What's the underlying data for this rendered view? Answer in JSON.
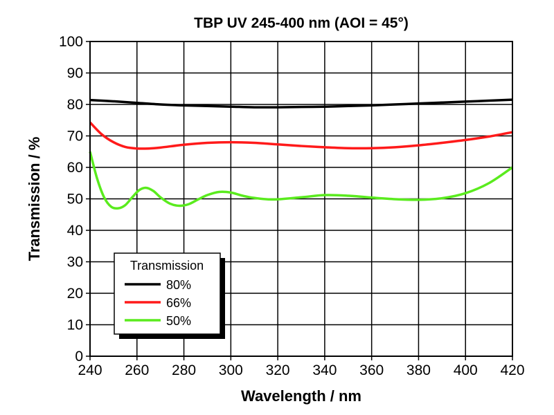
{
  "chart_data": {
    "type": "line",
    "title": "TBP UV 245-400 nm (AOI = 45°)",
    "xlabel": "Wavelength / nm",
    "ylabel": "Transmission / %",
    "xlim": [
      240,
      420
    ],
    "ylim": [
      0,
      100
    ],
    "xticks": [
      240,
      260,
      280,
      300,
      320,
      340,
      360,
      380,
      400,
      420
    ],
    "yticks": [
      0,
      10,
      20,
      30,
      40,
      50,
      60,
      70,
      80,
      90,
      100
    ],
    "grid": true,
    "legend": {
      "title": "Transmission",
      "position": "bottom-left"
    },
    "series": [
      {
        "name": "80%",
        "color": "#000000",
        "x": [
          240,
          250,
          260,
          270,
          280,
          290,
          300,
          310,
          320,
          330,
          340,
          350,
          360,
          370,
          380,
          390,
          400,
          410,
          420
        ],
        "y": [
          81.4,
          81.0,
          80.5,
          80.0,
          79.7,
          79.5,
          79.3,
          79.1,
          79.1,
          79.2,
          79.3,
          79.5,
          79.7,
          80.0,
          80.3,
          80.6,
          80.9,
          81.2,
          81.5
        ]
      },
      {
        "name": "66%",
        "color": "#ff1a1a",
        "x": [
          240,
          245,
          250,
          255,
          260,
          265,
          270,
          280,
          290,
          300,
          310,
          320,
          330,
          340,
          350,
          360,
          370,
          380,
          390,
          400,
          410,
          420
        ],
        "y": [
          74.3,
          70.5,
          68.0,
          66.5,
          66.0,
          66.0,
          66.3,
          67.2,
          67.8,
          68.0,
          67.8,
          67.3,
          66.8,
          66.4,
          66.1,
          66.1,
          66.4,
          67.0,
          67.8,
          68.7,
          69.8,
          71.2
        ]
      },
      {
        "name": "50%",
        "color": "#5aeb1e",
        "x": [
          240,
          243,
          246,
          249,
          252,
          255,
          258,
          261,
          264,
          267,
          270,
          274,
          278,
          282,
          286,
          290,
          295,
          300,
          305,
          310,
          318,
          330,
          340,
          350,
          360,
          370,
          380,
          390,
          400,
          410,
          420
        ],
        "y": [
          65.0,
          56.5,
          50.5,
          47.5,
          47.0,
          48.0,
          50.5,
          52.8,
          53.5,
          52.5,
          50.5,
          48.5,
          47.8,
          48.3,
          49.8,
          51.2,
          52.2,
          52.0,
          51.0,
          50.3,
          49.8,
          50.5,
          51.2,
          51.0,
          50.4,
          49.9,
          49.7,
          50.2,
          51.8,
          55.0,
          60.0
        ]
      }
    ]
  }
}
